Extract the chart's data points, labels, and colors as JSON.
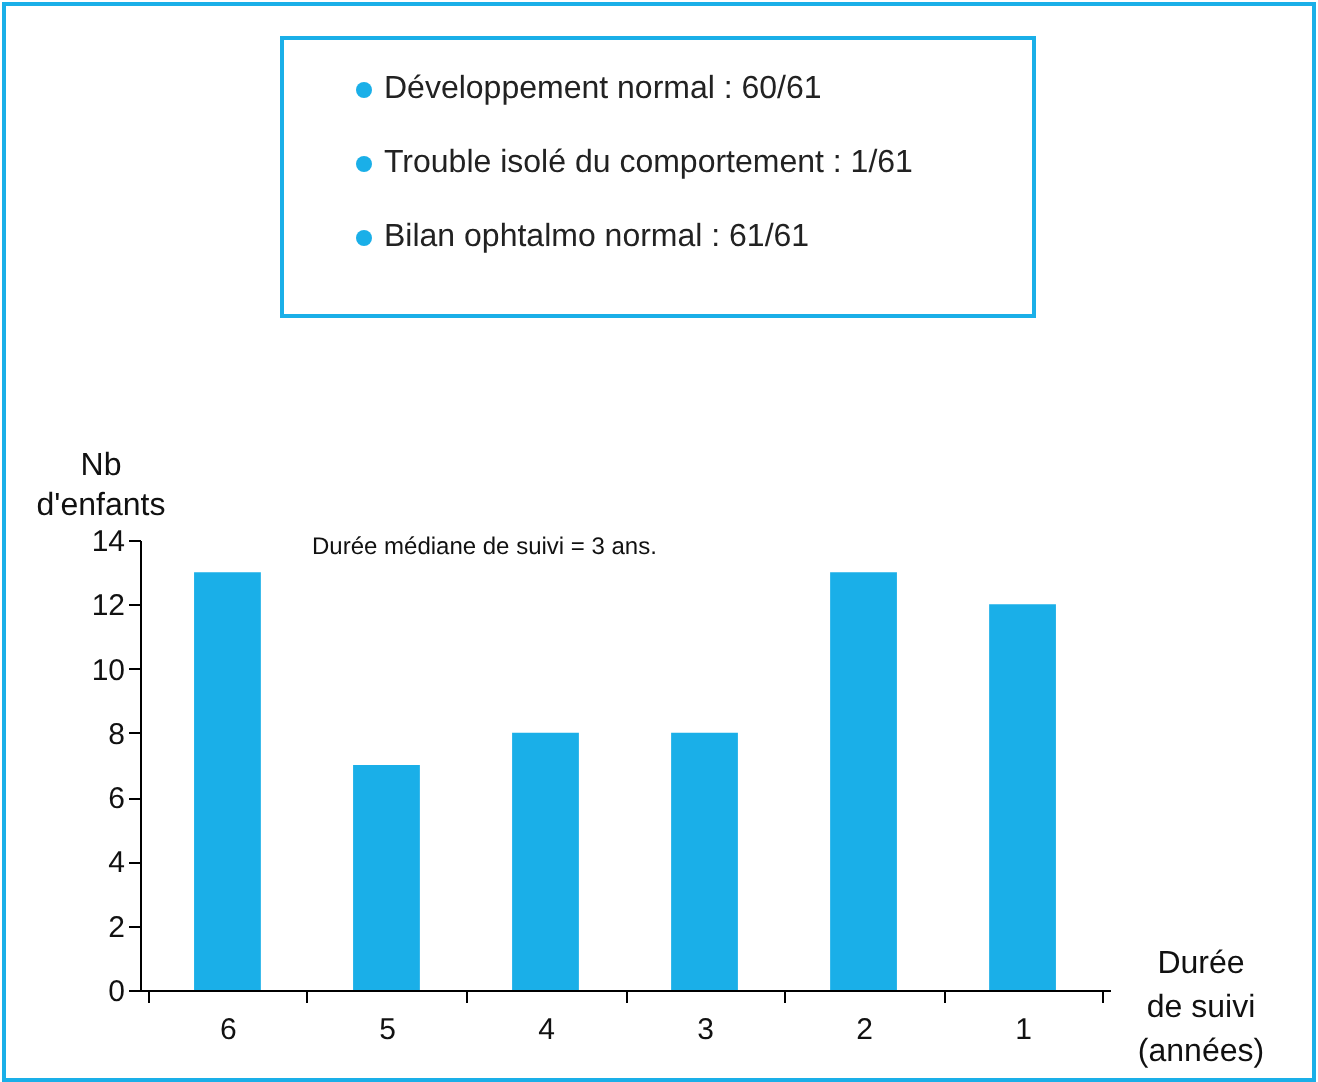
{
  "chart_data": {
    "type": "bar",
    "categories": [
      "6",
      "5",
      "4",
      "3",
      "2",
      "1"
    ],
    "values": [
      13,
      7,
      8,
      8,
      13,
      12
    ],
    "color": "#1aafe8",
    "ylim": [
      0,
      14
    ],
    "yticks": [
      0,
      2,
      4,
      6,
      8,
      10,
      12,
      14
    ],
    "ylabel": "Nb\nd'enfants",
    "xlabel": "Durée\nde suivi\n(années)",
    "annotations": [
      "Développement normal : 60/61",
      "Trouble isolé du comportement : 1/61",
      "Bilan ophtalmo normal : 61/61",
      "Durée médiane de suivi = 3 ans."
    ],
    "grid": false
  }
}
